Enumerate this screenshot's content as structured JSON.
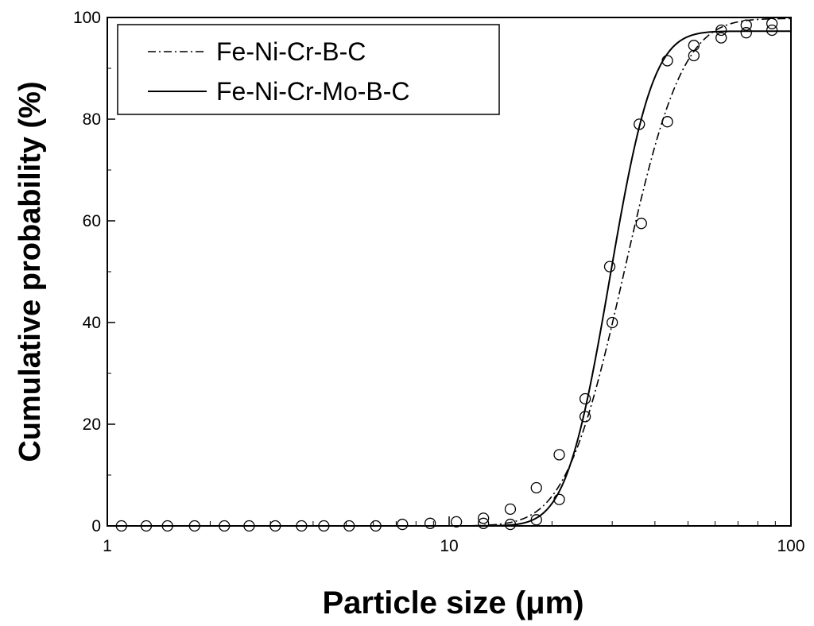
{
  "chart_data": {
    "type": "scatter",
    "title": "",
    "xlabel": "Particle size (μm)",
    "ylabel": "Cumulative probability (%)",
    "xscale": "log",
    "xlim": [
      1,
      100
    ],
    "ylim": [
      0,
      100
    ],
    "x_ticks": [
      "1",
      "10",
      "100"
    ],
    "y_ticks": [
      "0",
      "20",
      "40",
      "60",
      "80",
      "100"
    ],
    "grid": false,
    "legend_position": "top-left",
    "series": [
      {
        "name": "Fe-Ni-Cr-B-C",
        "line_style": "dash-dot",
        "fit_median": 32.5,
        "fit_sigma_ln": 0.31,
        "fit_max": 99.8,
        "marker": "open-circle",
        "points": [
          {
            "x": 1.1,
            "y": 0
          },
          {
            "x": 1.3,
            "y": 0
          },
          {
            "x": 1.5,
            "y": 0
          },
          {
            "x": 1.8,
            "y": 0
          },
          {
            "x": 2.2,
            "y": 0
          },
          {
            "x": 2.6,
            "y": 0
          },
          {
            "x": 3.1,
            "y": 0
          },
          {
            "x": 3.7,
            "y": 0
          },
          {
            "x": 4.3,
            "y": 0
          },
          {
            "x": 5.1,
            "y": 0
          },
          {
            "x": 6.1,
            "y": 0
          },
          {
            "x": 7.3,
            "y": 0.3
          },
          {
            "x": 8.8,
            "y": 0.5
          },
          {
            "x": 10.5,
            "y": 0.8
          },
          {
            "x": 12.6,
            "y": 1.5
          },
          {
            "x": 15.1,
            "y": 3.3
          },
          {
            "x": 18.0,
            "y": 7.5
          },
          {
            "x": 21.0,
            "y": 14.0
          },
          {
            "x": 25.0,
            "y": 21.5
          },
          {
            "x": 30.0,
            "y": 40.0
          },
          {
            "x": 36.5,
            "y": 59.5
          },
          {
            "x": 43.5,
            "y": 79.5
          },
          {
            "x": 52.0,
            "y": 92.5
          },
          {
            "x": 62.5,
            "y": 97.5
          },
          {
            "x": 74.0,
            "y": 98.5
          },
          {
            "x": 88.0,
            "y": 98.8
          }
        ]
      },
      {
        "name": "Fe-Ni-Cr-Mo-B-C",
        "line_style": "solid",
        "fit_median": 29.5,
        "fit_sigma_ln": 0.23,
        "fit_max": 97.3,
        "marker": "open-circle",
        "points": [
          {
            "x": 12.6,
            "y": 0.5
          },
          {
            "x": 15.1,
            "y": 0.3
          },
          {
            "x": 18.0,
            "y": 1.2
          },
          {
            "x": 21.0,
            "y": 5.2
          },
          {
            "x": 25.0,
            "y": 25.0
          },
          {
            "x": 29.5,
            "y": 51.0
          },
          {
            "x": 36.0,
            "y": 79.0
          },
          {
            "x": 43.5,
            "y": 91.5
          },
          {
            "x": 52.0,
            "y": 94.5
          },
          {
            "x": 62.5,
            "y": 96.0
          },
          {
            "x": 74.0,
            "y": 97.0
          },
          {
            "x": 88.0,
            "y": 97.5
          }
        ]
      }
    ]
  }
}
